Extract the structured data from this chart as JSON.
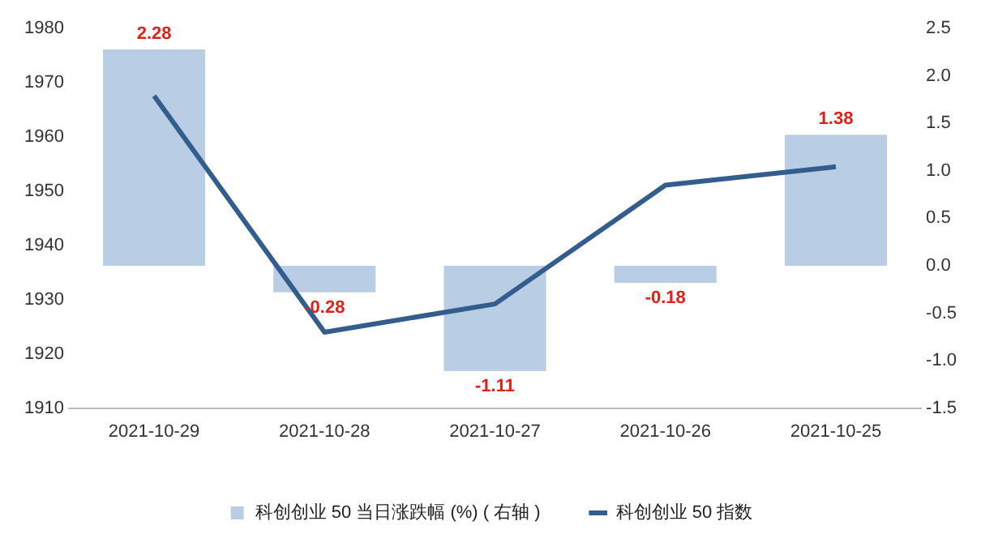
{
  "chart_data": {
    "type": "bar",
    "categories": [
      "2021-10-29",
      "2021-10-28",
      "2021-10-27",
      "2021-10-26",
      "2021-10-25"
    ],
    "series": [
      {
        "name": "科创创业 50 当日涨跌幅 (%) ( 右轴 )",
        "axis": "y2",
        "color": "#b9cde5",
        "values": [
          2.28,
          -0.28,
          -1.11,
          -0.18,
          1.38
        ],
        "value_labels": [
          "2.28",
          "-0.28",
          "-1.11",
          "-0.18",
          "1.38"
        ]
      },
      {
        "name": "科创创业 50 指数",
        "type": "line",
        "axis": "y",
        "color": "#335d8c",
        "values": [
          1967.6,
          1924,
          1929.2,
          1951.1,
          1954.5
        ]
      }
    ],
    "ylim": [
      1910,
      1980
    ],
    "yticks": [
      1910,
      1920,
      1930,
      1940,
      1950,
      1960,
      1970,
      1980
    ],
    "y2lim": [
      -1.5,
      2.5
    ],
    "y2ticks": [
      {
        "value": -1.5,
        "label": "-1.5"
      },
      {
        "value": -1,
        "label": "-1.0"
      },
      {
        "value": -0.5,
        "label": "-0.5"
      },
      {
        "value": 0,
        "label": "0.0"
      },
      {
        "value": 0.5,
        "label": "0.5"
      },
      {
        "value": 1,
        "label": "1.0"
      },
      {
        "value": 1.5,
        "label": "1.5"
      },
      {
        "value": 2,
        "label": "2.0"
      },
      {
        "value": 2.5,
        "label": "2.5"
      }
    ],
    "grid": false,
    "legend": "bottom",
    "marker": "none",
    "line_style": "solid"
  }
}
